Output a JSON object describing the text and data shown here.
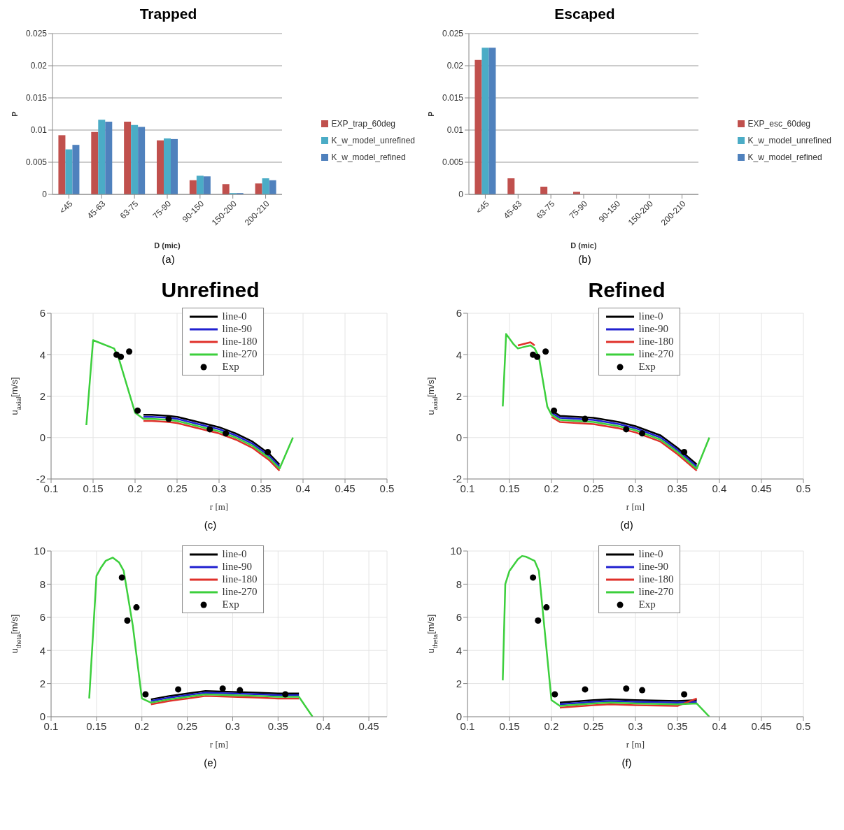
{
  "chart_data": [
    {
      "type": "bar",
      "title": "Trapped",
      "xlabel": "D (mic)",
      "ylabel": "P",
      "categories": [
        "<45",
        "45-63",
        "63-75",
        "75-90",
        "90-150",
        "150-200",
        "200-210"
      ],
      "ylim": [
        0,
        0.025
      ],
      "yticks": [
        0,
        0.005,
        0.01,
        0.015,
        0.02,
        0.025
      ],
      "grid": "y",
      "legend": "right",
      "annotations": [
        "(a)"
      ],
      "series": [
        {
          "name": "EXP_trap_60deg",
          "color": "#c0504d",
          "values": [
            0.0092,
            0.0097,
            0.0113,
            0.0084,
            0.0022,
            0.0016,
            0.0017
          ]
        },
        {
          "name": "K_w_model_unrefined",
          "color": "#4bacc6",
          "values": [
            0.007,
            0.0116,
            0.0108,
            0.0087,
            0.0029,
            0.0002,
            0.0025
          ]
        },
        {
          "name": "K_w_model_refined",
          "color": "#4f81bd",
          "values": [
            0.0077,
            0.0113,
            0.0105,
            0.0086,
            0.0028,
            0.0002,
            0.0022
          ]
        }
      ]
    },
    {
      "type": "bar",
      "title": "Escaped",
      "xlabel": "D (mic)",
      "ylabel": "P",
      "categories": [
        "<45",
        "45-63",
        "63-75",
        "75-90",
        "90-150",
        "150-200",
        "200-210"
      ],
      "ylim": [
        0,
        0.025
      ],
      "yticks": [
        0,
        0.005,
        0.01,
        0.015,
        0.02,
        0.025
      ],
      "grid": "y",
      "legend": "right",
      "annotations": [
        "(b)"
      ],
      "series": [
        {
          "name": "EXP_esc_60deg",
          "color": "#c0504d",
          "values": [
            0.0209,
            0.0025,
            0.0012,
            0.0004,
            0,
            0,
            0
          ]
        },
        {
          "name": "K_w_model_unrefined",
          "color": "#4bacc6",
          "values": [
            0.0228,
            0,
            0,
            0,
            0,
            0,
            0
          ]
        },
        {
          "name": "K_w_model_refined",
          "color": "#4f81bd",
          "values": [
            0.0228,
            0,
            0,
            0,
            0,
            0,
            0
          ]
        }
      ]
    },
    {
      "type": "line",
      "title": "Unrefined",
      "xlabel": "r [m]",
      "ylabel": "u$_{axial}$[m/s]",
      "xlim": [
        0.1,
        0.5
      ],
      "xticks": [
        0.1,
        0.15,
        0.2,
        0.25,
        0.3,
        0.35,
        0.4,
        0.45,
        0.5
      ],
      "ylim": [
        -2,
        6
      ],
      "yticks": [
        -2,
        0,
        2,
        4,
        6
      ],
      "grid": true,
      "legend": "top",
      "marker": "none",
      "line_style": "solid",
      "annotations": [
        "(c)"
      ],
      "x": [
        0.142,
        0.15,
        0.175,
        0.18,
        0.2,
        0.21,
        0.22,
        0.24,
        0.25,
        0.27,
        0.3,
        0.32,
        0.34,
        0.35,
        0.36,
        0.372,
        0.388
      ],
      "series": [
        {
          "name": "line-0",
          "color": "#000000",
          "values": [
            null,
            null,
            null,
            null,
            null,
            1.1,
            1.1,
            1.05,
            1.0,
            0.8,
            0.5,
            0.2,
            -0.2,
            -0.5,
            -0.8,
            -1.3,
            null
          ]
        },
        {
          "name": "line-90",
          "color": "#2020d0",
          "values": [
            null,
            null,
            null,
            null,
            null,
            1.0,
            1.0,
            0.95,
            0.9,
            0.7,
            0.4,
            0.1,
            -0.3,
            -0.6,
            -0.9,
            -1.4,
            null
          ]
        },
        {
          "name": "line-180",
          "color": "#e0302a",
          "values": [
            null,
            null,
            null,
            null,
            null,
            0.8,
            0.8,
            0.75,
            0.7,
            0.5,
            0.2,
            -0.1,
            -0.5,
            -0.8,
            -1.1,
            -1.6,
            null
          ]
        },
        {
          "name": "line-270",
          "color": "#3ccf3c",
          "values": [
            0.6,
            4.7,
            4.3,
            3.9,
            1.2,
            0.9,
            0.9,
            0.85,
            0.8,
            0.6,
            0.3,
            0.0,
            -0.4,
            -0.7,
            -1.0,
            -1.5,
            0.0
          ]
        },
        {
          "name": "Exp",
          "type": "scatter",
          "marker": "circle",
          "color": "#000000",
          "x": [
            0.178,
            0.183,
            0.193,
            0.203,
            0.24,
            0.289,
            0.308,
            0.358
          ],
          "values": [
            4.0,
            3.9,
            4.15,
            1.3,
            0.9,
            0.4,
            0.2,
            -0.7
          ]
        }
      ]
    },
    {
      "type": "line",
      "title": "Refined",
      "xlabel": "r [m]",
      "ylabel": "u$_{axial}$[m/s]",
      "xlim": [
        0.1,
        0.5
      ],
      "xticks": [
        0.1,
        0.15,
        0.2,
        0.25,
        0.3,
        0.35,
        0.4,
        0.45,
        0.5
      ],
      "ylim": [
        -2,
        6
      ],
      "yticks": [
        -2,
        0,
        2,
        4,
        6
      ],
      "grid": true,
      "legend": "top",
      "marker": "none",
      "line_style": "solid",
      "annotations": [
        "(d)"
      ],
      "x": [
        0.142,
        0.146,
        0.155,
        0.16,
        0.17,
        0.175,
        0.18,
        0.185,
        0.195,
        0.2,
        0.21,
        0.25,
        0.28,
        0.3,
        0.33,
        0.35,
        0.373,
        0.388
      ],
      "series": [
        {
          "name": "line-0",
          "color": "#000000",
          "values": [
            null,
            null,
            null,
            null,
            null,
            null,
            null,
            null,
            null,
            1.3,
            1.05,
            0.95,
            0.75,
            0.55,
            0.1,
            -0.5,
            -1.3,
            null
          ]
        },
        {
          "name": "line-90",
          "color": "#2020d0",
          "values": [
            null,
            null,
            null,
            null,
            null,
            null,
            null,
            null,
            null,
            1.2,
            0.95,
            0.85,
            0.65,
            0.45,
            0.0,
            -0.6,
            -1.4,
            null
          ]
        },
        {
          "name": "line-180",
          "color": "#e0302a",
          "values": [
            null,
            null,
            null,
            4.45,
            4.55,
            4.6,
            4.45,
            null,
            null,
            1.0,
            0.75,
            0.65,
            0.45,
            0.25,
            -0.2,
            -0.8,
            -1.6,
            null
          ]
        },
        {
          "name": "line-270",
          "color": "#3ccf3c",
          "values": [
            1.5,
            5.0,
            4.5,
            4.3,
            4.4,
            4.45,
            4.3,
            3.9,
            1.5,
            1.1,
            0.85,
            0.75,
            0.55,
            0.35,
            -0.1,
            -0.7,
            -1.5,
            0.0
          ]
        },
        {
          "name": "Exp",
          "type": "scatter",
          "marker": "circle",
          "color": "#000000",
          "x": [
            0.178,
            0.183,
            0.193,
            0.203,
            0.24,
            0.289,
            0.308,
            0.358
          ],
          "values": [
            4.0,
            3.9,
            4.15,
            1.3,
            0.9,
            0.4,
            0.2,
            -0.7
          ]
        }
      ]
    },
    {
      "type": "line",
      "xlabel": "r [m]",
      "ylabel": "u$_{theta}$[m/s]",
      "xlim": [
        0.1,
        0.47
      ],
      "xticks": [
        0.1,
        0.15,
        0.2,
        0.25,
        0.3,
        0.35,
        0.4,
        0.45
      ],
      "ylim": [
        0,
        10
      ],
      "yticks": [
        0,
        2,
        4,
        6,
        8,
        10
      ],
      "grid": true,
      "legend": "top",
      "marker": "none",
      "line_style": "solid",
      "annotations": [
        "(e)"
      ],
      "x": [
        0.142,
        0.15,
        0.155,
        0.16,
        0.168,
        0.175,
        0.18,
        0.19,
        0.2,
        0.21,
        0.23,
        0.25,
        0.27,
        0.3,
        0.33,
        0.35,
        0.373,
        0.388
      ],
      "series": [
        {
          "name": "line-0",
          "color": "#000000",
          "values": [
            null,
            null,
            null,
            null,
            null,
            null,
            null,
            null,
            null,
            1.05,
            1.25,
            1.4,
            1.55,
            1.5,
            1.45,
            1.4,
            1.4,
            null
          ]
        },
        {
          "name": "line-90",
          "color": "#2020d0",
          "values": [
            null,
            null,
            null,
            null,
            null,
            null,
            null,
            null,
            null,
            0.95,
            1.15,
            1.3,
            1.45,
            1.4,
            1.35,
            1.3,
            1.3,
            null
          ]
        },
        {
          "name": "line-180",
          "color": "#e0302a",
          "values": [
            null,
            null,
            null,
            null,
            null,
            null,
            null,
            null,
            null,
            0.75,
            0.95,
            1.1,
            1.25,
            1.2,
            1.15,
            1.1,
            1.1,
            null
          ]
        },
        {
          "name": "line-270",
          "color": "#3ccf3c",
          "values": [
            1.1,
            8.5,
            9.0,
            9.4,
            9.6,
            9.3,
            8.8,
            5.5,
            1.1,
            0.85,
            1.05,
            1.2,
            1.35,
            1.3,
            1.25,
            1.2,
            1.2,
            0.0
          ]
        },
        {
          "name": "Exp",
          "type": "scatter",
          "marker": "circle",
          "color": "#000000",
          "x": [
            0.178,
            0.184,
            0.194,
            0.204,
            0.24,
            0.289,
            0.308,
            0.358
          ],
          "values": [
            8.4,
            5.8,
            6.6,
            1.35,
            1.65,
            1.7,
            1.6,
            1.35
          ]
        }
      ]
    },
    {
      "type": "line",
      "xlabel": "r [m]",
      "ylabel": "u$_{theta}$[m/s]",
      "xlim": [
        0.1,
        0.5
      ],
      "xticks": [
        0.1,
        0.15,
        0.2,
        0.25,
        0.3,
        0.35,
        0.4,
        0.45,
        0.5
      ],
      "ylim": [
        0,
        10
      ],
      "yticks": [
        0,
        2,
        4,
        6,
        8,
        10
      ],
      "grid": true,
      "legend": "top",
      "marker": "none",
      "line_style": "solid",
      "annotations": [
        "(f)"
      ],
      "x": [
        0.142,
        0.145,
        0.15,
        0.16,
        0.165,
        0.17,
        0.18,
        0.185,
        0.2,
        0.21,
        0.25,
        0.27,
        0.3,
        0.35,
        0.373,
        0.388
      ],
      "series": [
        {
          "name": "line-0",
          "color": "#000000",
          "values": [
            null,
            null,
            null,
            null,
            null,
            null,
            null,
            null,
            null,
            0.85,
            1.0,
            1.05,
            1.0,
            0.95,
            1.0,
            null
          ]
        },
        {
          "name": "line-90",
          "color": "#2020d0",
          "values": [
            null,
            null,
            null,
            null,
            null,
            null,
            null,
            null,
            null,
            0.75,
            0.9,
            0.95,
            0.9,
            0.85,
            0.9,
            null
          ]
        },
        {
          "name": "line-180",
          "color": "#e0302a",
          "values": [
            null,
            null,
            null,
            null,
            null,
            null,
            null,
            null,
            null,
            0.55,
            0.7,
            0.75,
            0.7,
            0.65,
            1.1,
            null
          ]
        },
        {
          "name": "line-270",
          "color": "#3ccf3c",
          "values": [
            2.2,
            8.0,
            8.8,
            9.5,
            9.7,
            9.65,
            9.4,
            8.8,
            1.0,
            0.65,
            0.8,
            0.85,
            0.8,
            0.75,
            0.8,
            0.0
          ]
        },
        {
          "name": "Exp",
          "type": "scatter",
          "marker": "circle",
          "color": "#000000",
          "x": [
            0.178,
            0.184,
            0.194,
            0.204,
            0.24,
            0.289,
            0.308,
            0.358
          ],
          "values": [
            8.4,
            5.8,
            6.6,
            1.35,
            1.65,
            1.7,
            1.6,
            1.35
          ]
        }
      ]
    }
  ]
}
